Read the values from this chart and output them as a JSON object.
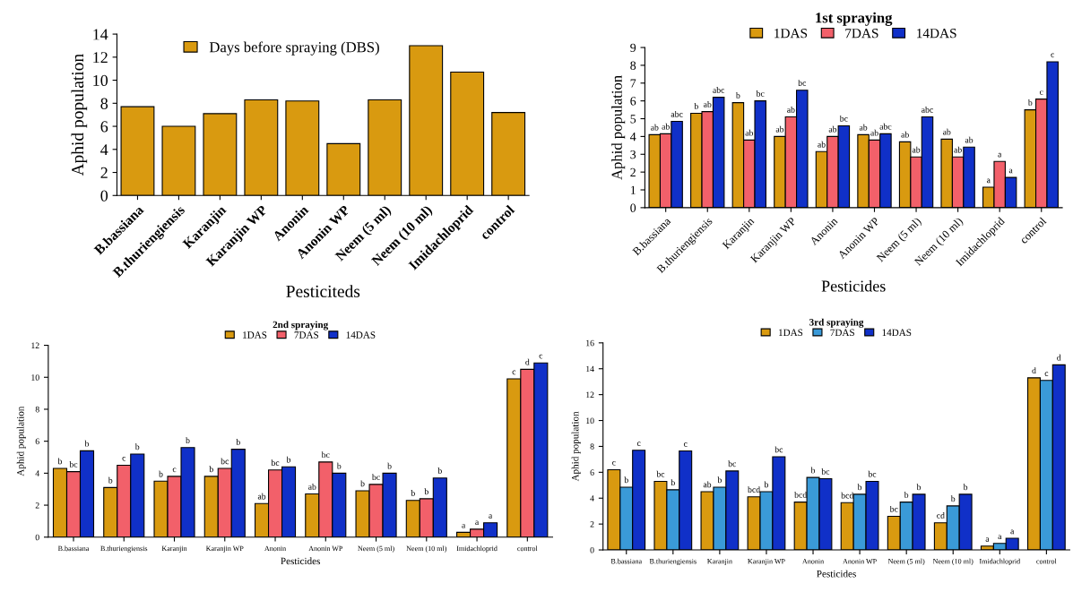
{
  "chart_data": [
    {
      "type": "bar",
      "xlabel": "Pesticiteds",
      "ylabel": "Aphid population",
      "categories": [
        "B.bassiana",
        "B.thuriengiensis",
        "Karanjin",
        "Karanjin WP",
        "Anonin",
        "Anonin WP",
        "Neem (5 ml)",
        "Neem (10 ml)",
        "Imidachloprid",
        "control"
      ],
      "series": [
        {
          "name": "Days before spraying (DBS)",
          "color": "#d99a10",
          "values": [
            7.7,
            6.0,
            7.1,
            8.3,
            8.2,
            4.5,
            8.3,
            13.0,
            10.7,
            7.2
          ]
        }
      ],
      "ylim": [
        0,
        14
      ],
      "yticks": [
        0,
        2,
        4,
        6,
        8,
        10,
        12,
        14
      ],
      "legend": "top",
      "grid": false
    },
    {
      "type": "bar",
      "title": "1st spraying",
      "xlabel": "Pesticides",
      "ylabel": "Aphid population",
      "categories": [
        "B.bassiana",
        "B.thuriengiensis",
        "Karanjin",
        "Karanjin WP",
        "Anonin",
        "Anonin WP",
        "Neem (5 ml)",
        "Neem (10 ml)",
        "Imidachloprid",
        "control"
      ],
      "series": [
        {
          "name": "1DAS",
          "color": "#d99a10",
          "values": [
            4.1,
            5.3,
            5.9,
            4.0,
            3.15,
            4.1,
            3.7,
            3.85,
            1.15,
            5.5
          ],
          "value_labels": [
            "ab",
            "b",
            "b",
            "ab",
            "ab",
            "ab",
            "ab",
            "ab",
            "a",
            "b"
          ]
        },
        {
          "name": "7DAS",
          "color": "#f2606a",
          "values": [
            4.15,
            5.4,
            3.8,
            5.1,
            4.0,
            3.8,
            2.85,
            2.85,
            2.6,
            6.1
          ],
          "value_labels": [
            "ab",
            "ab",
            "ab",
            "ab",
            "ab",
            "ab",
            "ab",
            "ab",
            "a",
            "c"
          ]
        },
        {
          "name": "14DAS",
          "color": "#1030c8",
          "values": [
            4.85,
            6.2,
            6.0,
            6.6,
            4.6,
            4.15,
            5.1,
            3.4,
            1.7,
            8.2
          ],
          "value_labels": [
            "abc",
            "abc",
            "bc",
            "bc",
            "bc",
            "abc",
            "abc",
            "ab",
            "a",
            "c"
          ]
        }
      ],
      "ylim": [
        0,
        9
      ],
      "yticks": [
        0,
        1,
        2,
        3,
        4,
        5,
        6,
        7,
        8,
        9
      ],
      "legend": "top",
      "grid": false
    },
    {
      "type": "bar",
      "title": "2nd spraying",
      "xlabel": "Pesticides",
      "ylabel": "Aphid population",
      "categories": [
        "B.bassiana",
        "B.thuriengiensis",
        "Karanjin",
        "Karanjin WP",
        "Anonin",
        "Anonin WP",
        "Neem (5 ml)",
        "Neem (10 ml)",
        "Imidachloprid",
        "control"
      ],
      "series": [
        {
          "name": "1DAS",
          "color": "#d99a10",
          "values": [
            4.3,
            3.1,
            3.5,
            3.8,
            2.1,
            2.7,
            2.9,
            2.3,
            0.3,
            9.9
          ],
          "value_labels": [
            "b",
            "b",
            "b",
            "b",
            "ab",
            "ab",
            "b",
            "b",
            "a",
            "c"
          ]
        },
        {
          "name": "7DAS",
          "color": "#f2606a",
          "values": [
            4.1,
            4.5,
            3.8,
            4.3,
            4.2,
            4.7,
            3.3,
            2.4,
            0.5,
            10.5
          ],
          "value_labels": [
            "bc",
            "c",
            "c",
            "bc",
            "bc",
            "bc",
            "bc",
            "b",
            "a",
            "d"
          ]
        },
        {
          "name": "14DAS",
          "color": "#1030c8",
          "values": [
            5.4,
            5.2,
            5.6,
            5.5,
            4.4,
            4.0,
            4.0,
            3.7,
            0.9,
            10.9
          ],
          "value_labels": [
            "b",
            "b",
            "b",
            "b",
            "b",
            "b",
            "b",
            "b",
            "a",
            "c"
          ]
        }
      ],
      "ylim": [
        0,
        12
      ],
      "yticks": [
        0,
        2,
        4,
        6,
        8,
        10,
        12
      ],
      "legend": "top",
      "grid": false
    },
    {
      "type": "bar",
      "title": "3rd spraying",
      "xlabel": "Pesticides",
      "ylabel": "Aphid population",
      "categories": [
        "B.bassiana",
        "B.thuriengiensis",
        "Karanjin",
        "Karanjin WP",
        "Anonin",
        "Anonin WP",
        "Neem (5 ml)",
        "Neem (10 ml)",
        "Imidachloprid",
        "control"
      ],
      "series": [
        {
          "name": "1DAS",
          "color": "#d99a10",
          "values": [
            6.2,
            5.3,
            4.5,
            4.1,
            3.7,
            3.65,
            2.6,
            2.1,
            0.3,
            13.3
          ],
          "value_labels": [
            "c",
            "bc",
            "ab",
            "bcd",
            "bcd",
            "bcd",
            "bc",
            "cd",
            "a",
            "d"
          ]
        },
        {
          "name": "7DAS",
          "color": "#3a9ad8",
          "values": [
            4.85,
            4.65,
            4.85,
            4.5,
            5.6,
            4.3,
            3.7,
            3.4,
            0.5,
            13.1
          ],
          "value_labels": [
            "b",
            "b",
            "b",
            "b",
            "b",
            "b",
            "b",
            "b",
            "a",
            "c"
          ]
        },
        {
          "name": "14DAS",
          "color": "#1030c8",
          "values": [
            7.7,
            7.65,
            6.1,
            7.2,
            5.5,
            5.3,
            4.3,
            4.3,
            0.9,
            14.3
          ],
          "value_labels": [
            "c",
            "c",
            "bc",
            "bc",
            "bc",
            "bc",
            "b",
            "b",
            "a",
            "d"
          ]
        }
      ],
      "ylim": [
        0,
        16
      ],
      "yticks": [
        0,
        2,
        4,
        6,
        8,
        10,
        12,
        14,
        16
      ],
      "legend": "top",
      "grid": false
    }
  ]
}
